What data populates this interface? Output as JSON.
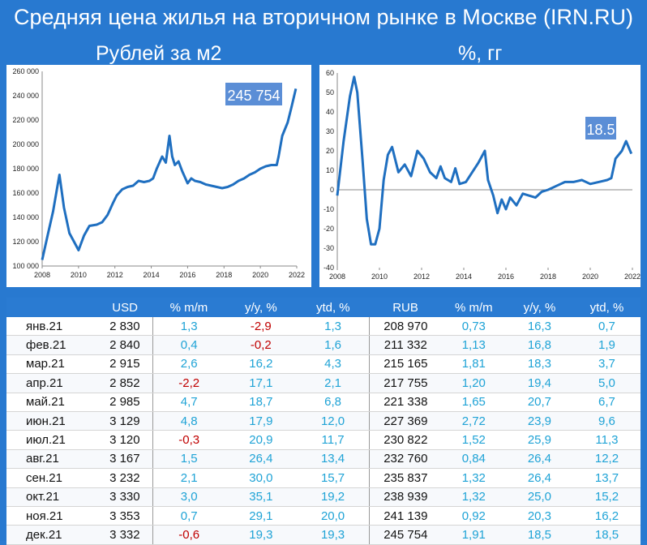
{
  "title": "Средняя цена жилья на вторичном рынке в Москве (IRN.RU)",
  "left_subtitle": "Рублей за м2",
  "right_subtitle": "%, гг",
  "colors": {
    "background": "#2879d0",
    "line": "#1f6fc0",
    "callout": "#5b8ed6",
    "positive": "#1fa3d6",
    "negative": "#c00000"
  },
  "chart_data": [
    {
      "type": "line",
      "ylim": [
        100000,
        260000
      ],
      "yticks": [
        "100 000",
        "120 000",
        "140 000",
        "160 000",
        "180 000",
        "200 000",
        "220 000",
        "240 000",
        "260 000"
      ],
      "xticks": [
        "2008",
        "2010",
        "2012",
        "2014",
        "2016",
        "2018",
        "2020",
        "2022"
      ],
      "xlim": [
        2008,
        2022
      ],
      "annotation": "245 754",
      "series": [
        {
          "x": [
            2008.0,
            2008.3,
            2008.6,
            2008.8,
            2008.95,
            2009.2,
            2009.5,
            2009.75,
            2010.0,
            2010.3,
            2010.6,
            2011.0,
            2011.3,
            2011.6,
            2011.9,
            2012.1,
            2012.4,
            2012.7,
            2013.0,
            2013.3,
            2013.6,
            2013.9,
            2014.1,
            2014.3,
            2014.6,
            2014.8,
            2015.0,
            2015.15,
            2015.3,
            2015.5,
            2015.7,
            2016.0,
            2016.2,
            2016.4,
            2016.7,
            2017.0,
            2017.3,
            2017.6,
            2017.9,
            2018.2,
            2018.5,
            2018.8,
            2019.1,
            2019.4,
            2019.7,
            2020.0,
            2020.3,
            2020.6,
            2020.9,
            2021.0,
            2021.2,
            2021.5,
            2021.7,
            2021.95
          ],
          "y": [
            105000,
            125000,
            145000,
            162000,
            175000,
            148000,
            127000,
            120000,
            113000,
            125000,
            133000,
            134000,
            136000,
            142000,
            152000,
            158000,
            163000,
            165000,
            166000,
            170000,
            169000,
            170000,
            172000,
            180000,
            190000,
            185000,
            207000,
            190000,
            183000,
            186000,
            178000,
            168000,
            172000,
            170000,
            169000,
            167000,
            166000,
            165000,
            164000,
            165000,
            167000,
            170000,
            172000,
            175000,
            177000,
            180000,
            182000,
            183000,
            183000,
            190000,
            207000,
            218000,
            230000,
            245754
          ]
        }
      ]
    },
    {
      "type": "line",
      "ylim": [
        -40,
        60
      ],
      "yticks": [
        "-40",
        "-30",
        "-20",
        "-10",
        "0",
        "10",
        "20",
        "30",
        "40",
        "50",
        "60"
      ],
      "xticks": [
        "2008",
        "2010",
        "2012",
        "2014",
        "2016",
        "2018",
        "2020",
        "2022"
      ],
      "xlim": [
        2008,
        2022
      ],
      "annotation": "18.5",
      "series": [
        {
          "x": [
            2008.0,
            2008.3,
            2008.6,
            2008.8,
            2008.95,
            2009.2,
            2009.4,
            2009.6,
            2009.8,
            2010.0,
            2010.2,
            2010.4,
            2010.6,
            2010.9,
            2011.2,
            2011.5,
            2011.8,
            2012.1,
            2012.4,
            2012.7,
            2012.9,
            2013.1,
            2013.4,
            2013.6,
            2013.8,
            2014.1,
            2014.4,
            2014.7,
            2015.0,
            2015.15,
            2015.4,
            2015.6,
            2015.8,
            2016.0,
            2016.2,
            2016.5,
            2016.8,
            2017.1,
            2017.4,
            2017.7,
            2018.0,
            2018.4,
            2018.8,
            2019.2,
            2019.6,
            2020.0,
            2020.4,
            2020.8,
            2021.0,
            2021.2,
            2021.5,
            2021.7,
            2021.95
          ],
          "y": [
            -3,
            25,
            48,
            58,
            50,
            15,
            -15,
            -28,
            -28,
            -20,
            5,
            18,
            22,
            9,
            13,
            7,
            20,
            16,
            9,
            6,
            12,
            6,
            4,
            11,
            3,
            4,
            9,
            14,
            20,
            5,
            -3,
            -12,
            -5,
            -10,
            -4,
            -8,
            -2,
            -3,
            -4,
            -1,
            0,
            2,
            4,
            4,
            5,
            3,
            4,
            5,
            6,
            16,
            20,
            25,
            18.5
          ]
        }
      ]
    }
  ],
  "table": {
    "headers": [
      "",
      "USD",
      "% m/m",
      "y/y, %",
      "ytd, %",
      "RUB",
      "% m/m",
      "y/y, %",
      "ytd, %"
    ],
    "rows": [
      [
        "янв.21",
        "2 830",
        "1,3",
        "-2,9",
        "1,3",
        "208 970",
        "0,73",
        "16,3",
        "0,7"
      ],
      [
        "фев.21",
        "2 840",
        "0,4",
        "-0,2",
        "1,6",
        "211 332",
        "1,13",
        "16,8",
        "1,9"
      ],
      [
        "мар.21",
        "2 915",
        "2,6",
        "16,2",
        "4,3",
        "215 165",
        "1,81",
        "18,3",
        "3,7"
      ],
      [
        "апр.21",
        "2 852",
        "-2,2",
        "17,1",
        "2,1",
        "217 755",
        "1,20",
        "19,4",
        "5,0"
      ],
      [
        "май.21",
        "2 985",
        "4,7",
        "18,7",
        "6,8",
        "221 338",
        "1,65",
        "20,7",
        "6,7"
      ],
      [
        "июн.21",
        "3 129",
        "4,8",
        "17,9",
        "12,0",
        "227 369",
        "2,72",
        "23,9",
        "9,6"
      ],
      [
        "июл.21",
        "3 120",
        "-0,3",
        "20,9",
        "11,7",
        "230 822",
        "1,52",
        "25,9",
        "11,3"
      ],
      [
        "авг.21",
        "3 167",
        "1,5",
        "26,4",
        "13,4",
        "232 760",
        "0,84",
        "26,4",
        "12,2"
      ],
      [
        "сен.21",
        "3 232",
        "2,1",
        "30,0",
        "15,7",
        "235 837",
        "1,32",
        "26,4",
        "13,7"
      ],
      [
        "окт.21",
        "3 330",
        "3,0",
        "35,1",
        "19,2",
        "238 939",
        "1,32",
        "25,0",
        "15,2"
      ],
      [
        "ноя.21",
        "3 353",
        "0,7",
        "29,1",
        "20,0",
        "241 139",
        "0,92",
        "20,3",
        "16,2"
      ],
      [
        "дек.21",
        "3 332",
        "-0,6",
        "19,3",
        "19,3",
        "245 754",
        "1,91",
        "18,5",
        "18,5"
      ]
    ]
  }
}
